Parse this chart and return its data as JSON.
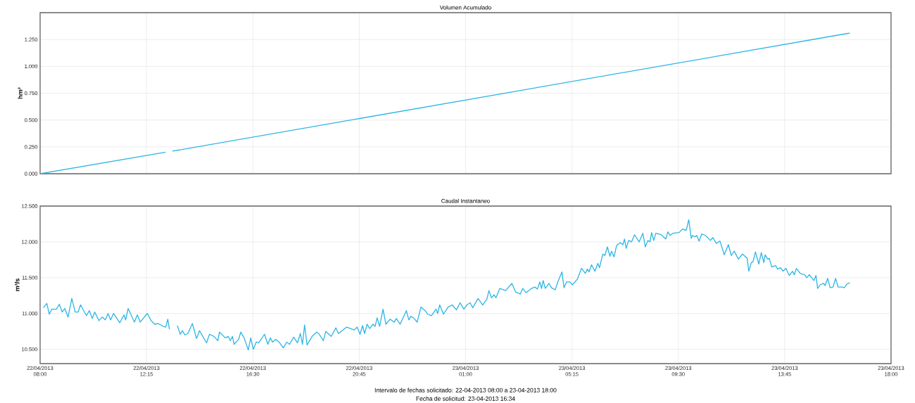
{
  "chart_data": [
    {
      "type": "line",
      "title": "Volumen Acumulado",
      "ylabel": "hm³",
      "grid": true,
      "tick_labels": "y",
      "xlim": [
        "2013-04-22T08:00",
        "2013-04-23T18:00"
      ],
      "xticks": [
        {
          "value": "2013-04-22T08:00",
          "label": null
        },
        {
          "value": "2013-04-22T12:15",
          "label": null
        },
        {
          "value": "2013-04-22T16:30",
          "label": null
        },
        {
          "value": "2013-04-22T20:45",
          "label": null
        },
        {
          "value": "2013-04-23T01:00",
          "label": null
        },
        {
          "value": "2013-04-23T05:15",
          "label": null
        },
        {
          "value": "2013-04-23T09:30",
          "label": null
        },
        {
          "value": "2013-04-23T13:45",
          "label": null
        },
        {
          "value": "2013-04-23T18:00",
          "label": null
        }
      ],
      "ylim": [
        0,
        1.5
      ],
      "yticks": [
        {
          "value": 0,
          "label": "0.000"
        },
        {
          "value": 0.25,
          "label": "0.250"
        },
        {
          "value": 0.5,
          "label": "0.500"
        },
        {
          "value": 0.75,
          "label": "0.750"
        },
        {
          "value": 1,
          "label": "1.000"
        },
        {
          "value": 1.25,
          "label": "1.250"
        }
      ],
      "series": [
        {
          "color": "#2bb5e6",
          "x": [
            "2013-04-22T08:00",
            "2013-04-22T13:01",
            "2013-04-22T13:09",
            "2013-04-22T13:17",
            "2013-04-23T16:21"
          ],
          "values": [
            0,
            0.2,
            null,
            0.21,
            1.31
          ]
        }
      ]
    },
    {
      "type": "line",
      "title": "Caudal Instantaneo",
      "ylabel": "m³/s",
      "grid": true,
      "annotations": [
        "Intervalo de fechas solicitado: 22-04-2013 08:00 a 23-04-2013 18:00",
        "Fecha de solicitud: 23-04-2013 16:34"
      ],
      "xlim": [
        "2013-04-22T08:00",
        "2013-04-23T18:00"
      ],
      "xticks": [
        {
          "value": "2013-04-22T08:00",
          "label": "22/04/2013 08:00"
        },
        {
          "value": "2013-04-22T12:15",
          "label": "22/04/2013 12:15"
        },
        {
          "value": "2013-04-22T16:30",
          "label": "22/04/2013 16:30"
        },
        {
          "value": "2013-04-22T20:45",
          "label": "22/04/2013 20:45"
        },
        {
          "value": "2013-04-23T01:00",
          "label": "23/04/2013 01:00"
        },
        {
          "value": "2013-04-23T05:15",
          "label": "23/04/2013 05:15"
        },
        {
          "value": "2013-04-23T09:30",
          "label": "23/04/2013 09:30"
        },
        {
          "value": "2013-04-23T13:45",
          "label": "23/04/2013 13:45"
        },
        {
          "value": "2013-04-23T18:00",
          "label": "23/04/2013 18:00"
        }
      ],
      "ylim": [
        10.3,
        12.5
      ],
      "yticks": [
        {
          "value": 10.5,
          "label": "10.500"
        },
        {
          "value": 11,
          "label": "11.000"
        },
        {
          "value": 11.5,
          "label": "11.500"
        },
        {
          "value": 12,
          "label": "12.000"
        },
        {
          "value": 12.5,
          "label": "12.500"
        }
      ],
      "series": [
        {
          "color": "#2bb5e6",
          "x": [
            "2013-04-22T08:08",
            "2013-04-22T08:16",
            "2013-04-22T08:22",
            "2013-04-22T08:28",
            "2013-04-22T08:39",
            "2013-04-22T08:46",
            "2013-04-22T08:53",
            "2013-04-22T08:59",
            "2013-04-22T09:07",
            "2013-04-22T09:16",
            "2013-04-22T09:24",
            "2013-04-22T09:31",
            "2013-04-22T09:37",
            "2013-04-22T09:51",
            "2013-04-22T09:58",
            "2013-04-22T10:05",
            "2013-04-22T10:11",
            "2013-04-22T10:21",
            "2013-04-22T10:29",
            "2013-04-22T10:36",
            "2013-04-22T10:43",
            "2013-04-22T10:49",
            "2013-04-22T10:56",
            "2013-04-22T11:11",
            "2013-04-22T11:21",
            "2013-04-22T11:25",
            "2013-04-22T11:31",
            "2013-04-22T11:46",
            "2013-04-22T11:53",
            "2013-04-22T12:00",
            "2013-04-22T12:17",
            "2013-04-22T12:26",
            "2013-04-22T12:35",
            "2013-04-22T12:43",
            "2013-04-22T12:55",
            "2013-04-22T13:01",
            "2013-04-22T13:06",
            "2013-04-22T13:10",
            "2013-04-22T13:18",
            "2013-04-22T13:29",
            "2013-04-22T13:36",
            "2013-04-22T13:41",
            "2013-04-22T13:47",
            "2013-04-22T13:54",
            "2013-04-22T14:05",
            "2013-04-22T14:15",
            "2013-04-22T14:22",
            "2013-04-22T14:39",
            "2013-04-22T14:46",
            "2013-04-22T14:57",
            "2013-04-22T15:06",
            "2013-04-22T15:10",
            "2013-04-22T15:24",
            "2013-04-22T15:31",
            "2013-04-22T15:36",
            "2013-04-22T15:41",
            "2013-04-22T15:45",
            "2013-04-22T15:56",
            "2013-04-22T16:01",
            "2013-04-22T16:09",
            "2013-04-22T16:19",
            "2013-04-22T16:25",
            "2013-04-22T16:31",
            "2013-04-22T16:38",
            "2013-04-22T16:44",
            "2013-04-22T16:58",
            "2013-04-22T17:06",
            "2013-04-22T17:12",
            "2013-04-22T17:17",
            "2013-04-22T17:25",
            "2013-04-22T17:33",
            "2013-04-22T17:43",
            "2013-04-22T17:51",
            "2013-04-22T17:58",
            "2013-04-22T18:08",
            "2013-04-22T18:17",
            "2013-04-22T18:24",
            "2013-04-22T18:29",
            "2013-04-22T18:34",
            "2013-04-22T18:40",
            "2013-04-22T18:52",
            "2013-04-22T19:03",
            "2013-04-22T19:08",
            "2013-04-22T19:19",
            "2013-04-22T19:25",
            "2013-04-22T19:38",
            "2013-04-22T19:49",
            "2013-04-22T19:55",
            "2013-04-22T20:15",
            "2013-04-22T20:33",
            "2013-04-22T20:40",
            "2013-04-22T20:47",
            "2013-04-22T20:53",
            "2013-04-22T20:58",
            "2013-04-22T21:04",
            "2013-04-22T21:10",
            "2013-04-22T21:18",
            "2013-04-22T21:23",
            "2013-04-22T21:28",
            "2013-04-22T21:34",
            "2013-04-22T21:42",
            "2013-04-22T21:49",
            "2013-04-22T21:59",
            "2013-04-22T22:09",
            "2013-04-22T22:14",
            "2013-04-22T22:23",
            "2013-04-22T22:38",
            "2013-04-22T22:44",
            "2013-04-22T22:49",
            "2013-04-22T22:55",
            "2013-04-22T23:04",
            "2013-04-22T23:13",
            "2013-04-22T23:23",
            "2013-04-22T23:29",
            "2013-04-22T23:38",
            "2013-04-22T23:49",
            "2013-04-22T23:53",
            "2013-04-22T23:58",
            "2013-04-23T00:07",
            "2013-04-23T00:18",
            "2013-04-23T00:28",
            "2013-04-23T00:38",
            "2013-04-23T00:47",
            "2013-04-23T00:56",
            "2013-04-23T01:03",
            "2013-04-23T01:11",
            "2013-04-23T01:17",
            "2013-04-23T01:30",
            "2013-04-23T01:41",
            "2013-04-23T01:51",
            "2013-04-23T01:56",
            "2013-04-23T02:02",
            "2013-04-23T02:08",
            "2013-04-23T02:13",
            "2013-04-23T02:22",
            "2013-04-23T02:36",
            "2013-04-23T02:51",
            "2013-04-23T03:00",
            "2013-04-23T03:11",
            "2013-04-23T03:17",
            "2013-04-23T03:25",
            "2013-04-23T03:38",
            "2013-04-23T03:46",
            "2013-04-23T03:52",
            "2013-04-23T03:58",
            "2013-04-23T04:02",
            "2013-04-23T04:06",
            "2013-04-23T04:11",
            "2013-04-23T04:20",
            "2013-04-23T04:26",
            "2013-04-23T04:35",
            "2013-04-23T04:41",
            "2013-04-23T04:51",
            "2013-04-23T04:56",
            "2013-04-23T05:02",
            "2013-04-23T05:10",
            "2013-04-23T05:16",
            "2013-04-23T05:28",
            "2013-04-23T05:38",
            "2013-04-23T05:47",
            "2013-04-23T05:52",
            "2013-04-23T05:56",
            "2013-04-23T06:02",
            "2013-04-23T06:10",
            "2013-04-23T06:17",
            "2013-04-23T06:21",
            "2013-04-23T06:29",
            "2013-04-23T06:34",
            "2013-04-23T06:40",
            "2013-04-23T06:46",
            "2013-04-23T06:50",
            "2013-04-23T06:56",
            "2013-04-23T07:02",
            "2013-04-23T07:11",
            "2013-04-23T07:17",
            "2013-04-23T07:21",
            "2013-04-23T07:25",
            "2013-04-23T07:31",
            "2013-04-23T07:38",
            "2013-04-23T07:45",
            "2013-04-23T07:56",
            "2013-04-23T08:05",
            "2013-04-23T08:11",
            "2013-04-23T08:17",
            "2013-04-23T08:22",
            "2013-04-23T08:26",
            "2013-04-23T08:31",
            "2013-04-23T08:36",
            "2013-04-23T08:49",
            "2013-04-23T09:00",
            "2013-04-23T09:05",
            "2013-04-23T09:10",
            "2013-04-23T09:17",
            "2013-04-23T09:32",
            "2013-04-23T09:40",
            "2013-04-23T09:49",
            "2013-04-23T09:55",
            "2013-04-23T10:01",
            "2013-04-23T10:04",
            "2013-04-23T10:10",
            "2013-04-23T10:14",
            "2013-04-23T10:20",
            "2013-04-23T10:26",
            "2013-04-23T10:35",
            "2013-04-23T10:47",
            "2013-04-23T10:53",
            "2013-04-23T11:01",
            "2013-04-23T11:10",
            "2013-04-23T11:20",
            "2013-04-23T11:30",
            "2013-04-23T11:37",
            "2013-04-23T11:44",
            "2013-04-23T11:54",
            "2013-04-23T12:04",
            "2013-04-23T12:15",
            "2013-04-23T12:19",
            "2013-04-23T12:25",
            "2013-04-23T12:29",
            "2013-04-23T12:35",
            "2013-04-23T12:43",
            "2013-04-23T12:49",
            "2013-04-23T12:55",
            "2013-04-23T12:58",
            "2013-04-23T13:04",
            "2013-04-23T13:08",
            "2013-04-23T13:14",
            "2013-04-23T13:23",
            "2013-04-23T13:28",
            "2013-04-23T13:35",
            "2013-04-23T13:41",
            "2013-04-23T13:48",
            "2013-04-23T13:56",
            "2013-04-23T14:04",
            "2013-04-23T14:08",
            "2013-04-23T14:13",
            "2013-04-23T14:22",
            "2013-04-23T14:33",
            "2013-04-23T14:38",
            "2013-04-23T14:44",
            "2013-04-23T14:55",
            "2013-04-23T15:00",
            "2013-04-23T15:04",
            "2013-04-23T15:10",
            "2013-04-23T15:18",
            "2013-04-23T15:22",
            "2013-04-23T15:28",
            "2013-04-23T15:34",
            "2013-04-23T15:41",
            "2013-04-23T15:47",
            "2013-04-23T15:53",
            "2013-04-23T16:03",
            "2013-04-23T16:08",
            "2013-04-23T16:14",
            "2013-04-23T16:21"
          ],
          "values": [
            11.08,
            11.14,
            10.99,
            11.06,
            11.06,
            11.13,
            11.02,
            11.07,
            10.95,
            11.21,
            11.02,
            11.02,
            11.12,
            10.97,
            11.04,
            10.93,
            11.02,
            10.9,
            10.95,
            10.91,
            11.0,
            10.91,
            11.0,
            10.87,
            10.98,
            10.91,
            11.07,
            10.88,
            10.98,
            10.88,
            11.0,
            10.9,
            10.85,
            10.86,
            10.82,
            10.81,
            10.92,
            10.78,
            null,
            10.83,
            10.71,
            10.76,
            10.7,
            10.72,
            10.86,
            10.65,
            10.76,
            10.59,
            10.71,
            10.68,
            10.62,
            10.74,
            10.66,
            10.68,
            10.62,
            10.68,
            10.57,
            10.64,
            10.74,
            10.66,
            10.49,
            10.66,
            10.5,
            10.6,
            10.59,
            10.71,
            10.57,
            10.66,
            10.6,
            10.64,
            10.6,
            10.52,
            10.6,
            10.57,
            10.67,
            10.59,
            10.72,
            10.57,
            10.84,
            10.56,
            10.68,
            10.74,
            10.72,
            10.62,
            10.75,
            10.68,
            10.8,
            10.72,
            10.81,
            10.77,
            10.81,
            10.71,
            10.83,
            10.72,
            10.85,
            10.79,
            10.85,
            10.82,
            10.94,
            10.82,
            11.06,
            10.85,
            10.92,
            10.88,
            10.93,
            10.85,
            11.04,
            10.91,
            10.96,
            10.94,
            10.88,
            11.09,
            11.04,
            10.99,
            10.97,
            11.06,
            11.0,
            11.12,
            10.99,
            11.09,
            11.12,
            11.05,
            11.15,
            11.06,
            11.12,
            11.15,
            11.08,
            11.21,
            11.12,
            11.2,
            11.32,
            11.22,
            11.26,
            11.22,
            11.35,
            11.32,
            11.42,
            11.3,
            11.27,
            11.35,
            11.29,
            11.35,
            11.37,
            11.34,
            11.44,
            11.35,
            11.46,
            11.35,
            11.42,
            11.36,
            11.33,
            11.44,
            11.58,
            11.36,
            11.44,
            11.44,
            11.4,
            11.48,
            11.63,
            11.56,
            11.62,
            11.58,
            11.68,
            11.59,
            11.7,
            11.64,
            11.83,
            11.81,
            11.93,
            11.8,
            11.87,
            11.79,
            11.95,
            11.99,
            11.96,
            12.04,
            11.91,
            12.02,
            12.0,
            12.1,
            12.0,
            12.12,
            11.93,
            12.02,
            12.0,
            12.13,
            12.02,
            12.12,
            12.1,
            12.04,
            12.14,
            12.09,
            12.12,
            12.13,
            12.18,
            12.16,
            12.31,
            12.05,
            12.09,
            12.07,
            12.09,
            12.01,
            12.11,
            12.09,
            12.02,
            12.06,
            11.98,
            12.01,
            11.82,
            11.96,
            11.81,
            11.87,
            11.76,
            11.83,
            11.77,
            11.59,
            11.71,
            11.72,
            11.86,
            11.69,
            11.85,
            11.71,
            11.82,
            11.76,
            11.77,
            11.65,
            11.67,
            11.62,
            11.64,
            11.59,
            11.63,
            11.53,
            11.59,
            11.54,
            11.63,
            11.56,
            11.54,
            11.5,
            11.54,
            11.46,
            11.53,
            11.35,
            11.4,
            11.42,
            11.39,
            11.49,
            11.36,
            11.37,
            11.49,
            11.37,
            11.37,
            11.36,
            11.41,
            11.43
          ]
        }
      ]
    }
  ]
}
